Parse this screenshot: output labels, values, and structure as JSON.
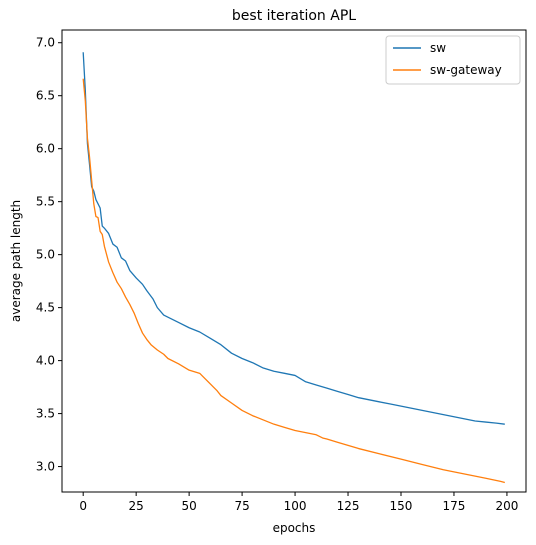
{
  "chart_data": {
    "type": "line",
    "title": "best iteration APL",
    "xlabel": "epochs",
    "ylabel": "average path length",
    "xlim": [
      -10,
      209
    ],
    "ylim": [
      2.76,
      7.12
    ],
    "xticks": [
      0,
      25,
      50,
      75,
      100,
      125,
      150,
      175,
      200
    ],
    "xtick_labels": [
      "0",
      "25",
      "50",
      "75",
      "100",
      "125",
      "150",
      "175",
      "200"
    ],
    "yticks": [
      3.0,
      3.5,
      4.0,
      4.5,
      5.0,
      5.5,
      6.0,
      6.5,
      7.0
    ],
    "ytick_labels": [
      "3.0",
      "3.5",
      "4.0",
      "4.5",
      "5.0",
      "5.5",
      "6.0",
      "6.5",
      "7.0"
    ],
    "grid": false,
    "legend_position": "top-right",
    "series": [
      {
        "name": "sw",
        "color": "#1f77b4",
        "x": [
          0,
          1,
          2,
          3,
          4,
          5,
          6,
          8,
          9,
          10,
          12,
          14,
          16,
          18,
          20,
          22,
          25,
          28,
          30,
          33,
          35,
          38,
          40,
          45,
          50,
          55,
          60,
          65,
          70,
          75,
          80,
          85,
          90,
          95,
          100,
          105,
          110,
          115,
          120,
          125,
          130,
          135,
          140,
          145,
          150,
          155,
          160,
          165,
          170,
          175,
          180,
          185,
          190,
          195,
          199
        ],
        "values": [
          6.91,
          6.55,
          6.05,
          5.85,
          5.64,
          5.6,
          5.52,
          5.44,
          5.27,
          5.25,
          5.2,
          5.1,
          5.07,
          4.97,
          4.94,
          4.85,
          4.78,
          4.72,
          4.66,
          4.58,
          4.5,
          4.43,
          4.41,
          4.36,
          4.31,
          4.27,
          4.21,
          4.15,
          4.07,
          4.02,
          3.98,
          3.93,
          3.9,
          3.88,
          3.86,
          3.8,
          3.77,
          3.74,
          3.71,
          3.68,
          3.65,
          3.63,
          3.61,
          3.59,
          3.57,
          3.55,
          3.53,
          3.51,
          3.49,
          3.47,
          3.45,
          3.43,
          3.42,
          3.41,
          3.4
        ]
      },
      {
        "name": "sw-gateway",
        "color": "#ff7f0e",
        "x": [
          0,
          1,
          2,
          3,
          4,
          5,
          6,
          7,
          8,
          9,
          10,
          12,
          14,
          16,
          18,
          20,
          22,
          24,
          26,
          28,
          30,
          32,
          35,
          38,
          40,
          45,
          50,
          55,
          58,
          60,
          63,
          65,
          70,
          75,
          80,
          85,
          90,
          95,
          100,
          105,
          110,
          113,
          115,
          120,
          125,
          130,
          140,
          150,
          160,
          170,
          180,
          190,
          197,
          199
        ],
        "values": [
          6.66,
          6.45,
          6.1,
          5.92,
          5.7,
          5.48,
          5.36,
          5.35,
          5.22,
          5.19,
          5.08,
          4.93,
          4.83,
          4.74,
          4.68,
          4.6,
          4.53,
          4.45,
          4.35,
          4.26,
          4.2,
          4.15,
          4.1,
          4.06,
          4.02,
          3.97,
          3.91,
          3.88,
          3.82,
          3.78,
          3.72,
          3.67,
          3.6,
          3.53,
          3.48,
          3.44,
          3.4,
          3.37,
          3.34,
          3.32,
          3.3,
          3.27,
          3.26,
          3.23,
          3.2,
          3.17,
          3.12,
          3.07,
          3.02,
          2.97,
          2.93,
          2.89,
          2.86,
          2.85
        ]
      }
    ]
  }
}
